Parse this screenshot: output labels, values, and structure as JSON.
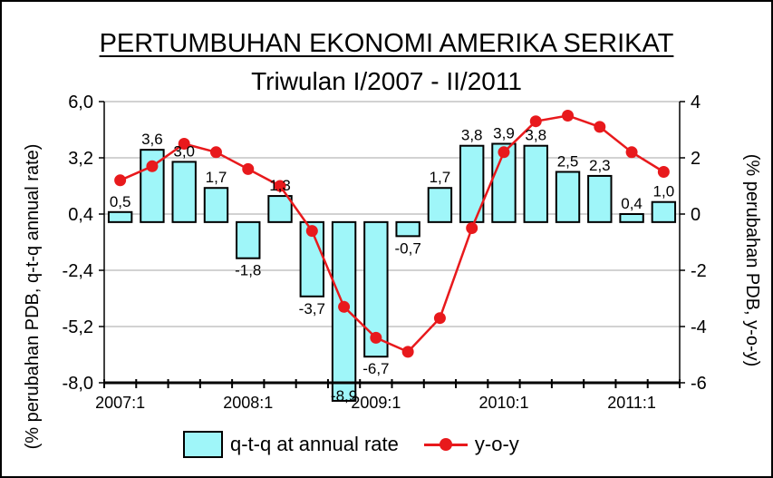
{
  "title": "PERTUMBUHAN EKONOMI AMERIKA SERIKAT",
  "subtitle": "Triwulan I/2007 - II/2011",
  "colors": {
    "bar_fill": "#9ff6f9",
    "bar_stroke": "#000000",
    "line": "#e8191c",
    "grid": "#a6a6a6"
  },
  "legend": {
    "bar_label": "q-t-q at annual rate",
    "line_label": "y-o-y"
  },
  "chart_data": {
    "type": "bar+line",
    "title": "PERTUMBUHAN EKONOMI AMERIKA SERIKAT",
    "subtitle": "Triwulan I/2007 - II/2011",
    "quarters": [
      "2007:1",
      "2007:2",
      "2007:3",
      "2007:4",
      "2008:1",
      "2008:2",
      "2008:3",
      "2008:4",
      "2009:1",
      "2009:2",
      "2009:3",
      "2009:4",
      "2010:1",
      "2010:2",
      "2010:3",
      "2010:4",
      "2011:1",
      "2011:2"
    ],
    "x_tick_labels": [
      {
        "index": 0,
        "label": "2007:1"
      },
      {
        "index": 4,
        "label": "2008:1"
      },
      {
        "index": 8,
        "label": "2009:1"
      },
      {
        "index": 12,
        "label": "2010:1"
      },
      {
        "index": 16,
        "label": "2011:1"
      }
    ],
    "ylabel_left": "(% perubahan PDB, q-t-q annual rate)",
    "ylabel_right": "(% perubahan PDB, y-o-y)",
    "yticks_left": [
      "6,0",
      "3,2",
      "0,4",
      "-2,4",
      "-5,2",
      "-8,0"
    ],
    "yticks_right": [
      "4",
      "2",
      "0",
      "-2",
      "-4",
      "-6"
    ],
    "ylim_left": [
      -8.0,
      6.0
    ],
    "ylim_right": [
      -6,
      4
    ],
    "series": [
      {
        "name": "q-t-q at annual rate",
        "type": "bar",
        "axis": "left",
        "values": [
          0.5,
          3.6,
          3.0,
          1.7,
          -1.8,
          1.3,
          -3.7,
          -8.9,
          -6.7,
          -0.7,
          1.7,
          3.8,
          3.9,
          3.8,
          2.5,
          2.3,
          0.4,
          1.0
        ],
        "data_labels": [
          "0,5",
          "3,6",
          "3,0",
          "1,7",
          "-1,8",
          "1,3",
          "-3,7",
          "-8,9",
          "-6,7",
          "-0,7",
          "1,7",
          "3,8",
          "3,9",
          "3,8",
          "2,5",
          "2,3",
          "0,4",
          "1,0"
        ]
      },
      {
        "name": "y-o-y",
        "type": "line",
        "axis": "right",
        "values": [
          1.2,
          1.7,
          2.5,
          2.2,
          1.6,
          1.0,
          -0.6,
          -3.3,
          -4.4,
          -4.9,
          -3.7,
          -0.5,
          2.2,
          3.3,
          3.5,
          3.1,
          2.2,
          1.5
        ]
      }
    ]
  }
}
